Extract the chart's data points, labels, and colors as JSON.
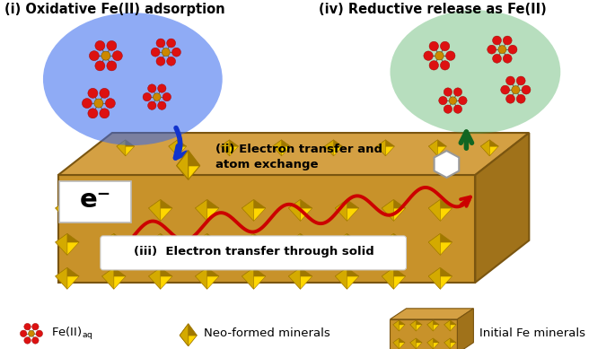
{
  "bg_color": "#ffffff",
  "label_i": "(i) Oxidative Fe(II) adsorption",
  "label_iv": "(iv) Reductive release as Fe(II)",
  "label_ii": "(ii) Electron transfer and\natom exchange",
  "label_iii": "(iii)  Electron transfer through solid",
  "label_eminus": "e⁻",
  "legend_neo": "Neo-formed minerals",
  "legend_init": "Initial Fe minerals",
  "box_front": "#c8922a",
  "box_top": "#d4a043",
  "box_right": "#a0721a",
  "box_edge": "#7a5510",
  "crystal_bright": "#FFD700",
  "crystal_mid": "#d4aa00",
  "crystal_dark": "#a07800",
  "blue_fill": "#3366ee",
  "blue_alpha": 0.55,
  "green_fill": "#44aa55",
  "green_alpha": 0.38,
  "atom_red": "#dd1111",
  "atom_orange": "#cc8800",
  "atom_green_center": "#886600",
  "arrow_blue": "#1133cc",
  "arrow_green": "#116622",
  "wave_color": "#cc0000",
  "white": "#ffffff",
  "black": "#000000",
  "hex_edge": "#999999"
}
